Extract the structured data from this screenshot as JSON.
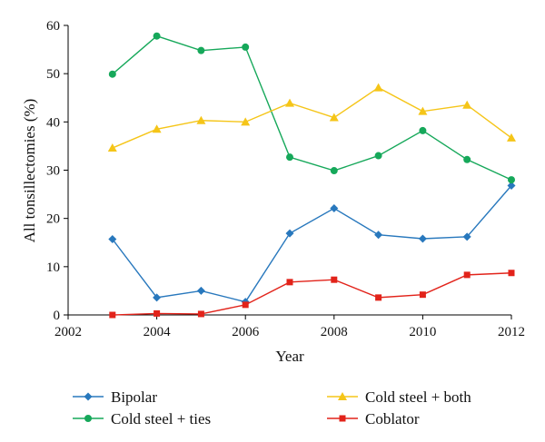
{
  "chart_data": {
    "type": "line",
    "title": "",
    "xlabel": "Year",
    "ylabel": "All tonsillectomies (%)",
    "xlim": [
      2002,
      2012
    ],
    "ylim": [
      0,
      60
    ],
    "x_ticks": [
      2002,
      2004,
      2006,
      2008,
      2010,
      2012
    ],
    "y_ticks": [
      0,
      10,
      20,
      30,
      40,
      50,
      60
    ],
    "grid": false,
    "legend_position": "bottom",
    "x": [
      2003,
      2004,
      2005,
      2006,
      2007,
      2008,
      2009,
      2010,
      2011,
      2012
    ],
    "series": [
      {
        "name": "Bipolar",
        "color": "#2878bd",
        "marker": "diamond",
        "values": [
          15.7,
          3.6,
          5.0,
          2.7,
          16.9,
          22.1,
          16.6,
          15.8,
          16.2,
          26.8
        ]
      },
      {
        "name": "Cold steel + ties",
        "color": "#16a85a",
        "marker": "circle",
        "values": [
          49.9,
          57.8,
          54.8,
          55.5,
          32.7,
          29.9,
          33.0,
          38.2,
          32.2,
          28.0
        ]
      },
      {
        "name": "Cold steel + both",
        "color": "#f5c518",
        "marker": "triangle",
        "values": [
          34.6,
          38.5,
          40.3,
          40.0,
          43.9,
          40.9,
          47.1,
          42.2,
          43.5,
          36.7
        ]
      },
      {
        "name": "Coblator",
        "color": "#e2231a",
        "marker": "square",
        "values": [
          0.0,
          0.3,
          0.2,
          2.1,
          6.8,
          7.3,
          3.6,
          4.2,
          8.3,
          8.7
        ]
      }
    ]
  }
}
